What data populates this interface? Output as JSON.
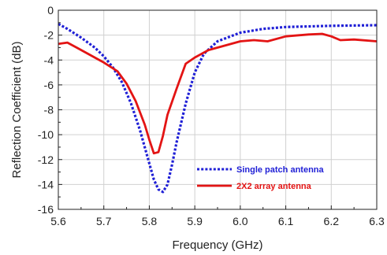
{
  "chart_data": {
    "type": "line",
    "title": "",
    "xlabel": "Frequency (GHz)",
    "ylabel": "Reflection Coefficient (dB)",
    "xlim": [
      5.6,
      6.3
    ],
    "ylim": [
      -16,
      0
    ],
    "x_ticks": [
      "5.6",
      "5.7",
      "5.8",
      "5.9",
      "6.0",
      "6.1",
      "6.2",
      "6.3"
    ],
    "y_ticks": [
      "0",
      "-2",
      "-4",
      "-6",
      "-8",
      "-10",
      "-12",
      "-14",
      "-16"
    ],
    "grid": true,
    "legend_position": "bottom-right",
    "series": [
      {
        "name": "Single patch antenna",
        "color": "#1f1fd6",
        "style": "dotted",
        "x": [
          5.6,
          5.62,
          5.65,
          5.68,
          5.7,
          5.72,
          5.74,
          5.76,
          5.78,
          5.8,
          5.81,
          5.82,
          5.83,
          5.84,
          5.85,
          5.86,
          5.88,
          5.9,
          5.92,
          5.95,
          6.0,
          6.05,
          6.1,
          6.2,
          6.3
        ],
        "values": [
          -1.1,
          -1.5,
          -2.2,
          -3.0,
          -3.7,
          -4.6,
          -5.8,
          -7.5,
          -9.7,
          -12.3,
          -13.6,
          -14.4,
          -14.6,
          -14.0,
          -12.4,
          -10.6,
          -7.5,
          -5.0,
          -3.5,
          -2.5,
          -1.8,
          -1.5,
          -1.35,
          -1.25,
          -1.2
        ]
      },
      {
        "name": "2X2 array antenna",
        "color": "#e31414",
        "style": "solid",
        "x": [
          5.6,
          5.62,
          5.64,
          5.67,
          5.7,
          5.73,
          5.75,
          5.77,
          5.79,
          5.8,
          5.81,
          5.82,
          5.83,
          5.84,
          5.86,
          5.88,
          5.9,
          5.93,
          5.96,
          6.0,
          6.03,
          6.06,
          6.1,
          6.15,
          6.18,
          6.2,
          6.22,
          6.25,
          6.3
        ],
        "values": [
          -2.7,
          -2.6,
          -3.0,
          -3.6,
          -4.2,
          -4.9,
          -5.9,
          -7.3,
          -9.2,
          -10.4,
          -11.5,
          -11.4,
          -10.1,
          -8.4,
          -6.3,
          -4.3,
          -3.8,
          -3.2,
          -2.9,
          -2.5,
          -2.4,
          -2.5,
          -2.1,
          -1.95,
          -1.9,
          -2.1,
          -2.4,
          -2.35,
          -2.5
        ]
      }
    ]
  }
}
